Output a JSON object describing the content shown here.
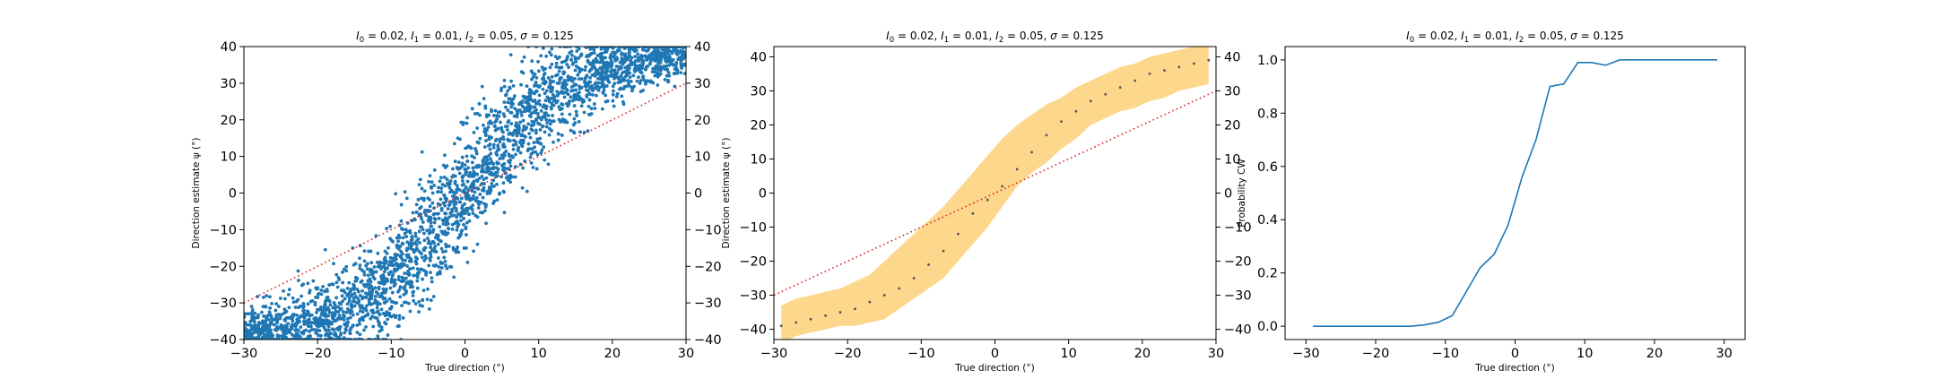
{
  "chart_data": [
    {
      "type": "scatter",
      "title": "$I_0 = 0.02$, $I_1 = 0.01$, $I_2 = 0.05$, $\\sigma = 0.125$",
      "title_parts": [
        "I",
        "0",
        " = 0.02, ",
        "I",
        "1",
        " = 0.01, ",
        "I",
        "2",
        " = 0.05, ",
        "σ",
        " = 0.125"
      ],
      "xlabel": "True direction (°)",
      "ylabel": "Direction estimate ψ (°)",
      "xlim": [
        -30,
        30
      ],
      "ylim": [
        -40,
        40
      ],
      "xticks": [
        -30,
        -20,
        -10,
        0,
        10,
        20,
        30
      ],
      "yticks": [
        -40,
        -30,
        -20,
        -10,
        0,
        10,
        20,
        30,
        40
      ],
      "right_axis_ticks": [
        -40,
        -30,
        -20,
        -10,
        0,
        10,
        20,
        30,
        40
      ],
      "point_color": "#1f77b4",
      "reference_line": {
        "x": [
          -30,
          30
        ],
        "y": [
          -30,
          30
        ],
        "color": "#d62728",
        "style": "dotted"
      },
      "trend": {
        "x": [
          -30,
          -27.5,
          -25,
          -22.5,
          -20,
          -17.5,
          -15,
          -12.5,
          -10,
          -7.5,
          -5,
          -2.5,
          0,
          2.5,
          5,
          7.5,
          10,
          12.5,
          15,
          17.5,
          20,
          22.5,
          25,
          27.5,
          30
        ],
        "y": [
          -39,
          -38,
          -37,
          -36,
          -35,
          -33,
          -31,
          -29,
          -24,
          -19,
          -13,
          -7,
          0,
          7,
          13,
          19,
          24,
          28,
          31,
          33,
          35,
          36,
          37,
          38,
          39
        ],
        "spread": [
          3,
          3.5,
          4,
          4.5,
          5,
          5.5,
          6,
          6.5,
          7,
          7.5,
          8,
          8,
          8,
          8,
          8,
          7.5,
          7,
          6.5,
          6,
          5.5,
          5,
          4.5,
          4,
          3.5,
          3
        ]
      },
      "n_points": 3000,
      "clipped_to_ylim": true
    },
    {
      "type": "line",
      "title": "$I_0 = 0.02$, $I_1 = 0.01$, $I_2 = 0.05$, $\\sigma = 0.125$",
      "title_parts": [
        "I",
        "0",
        " = 0.02, ",
        "I",
        "1",
        " = 0.01, ",
        "I",
        "2",
        " = 0.05, ",
        "σ",
        " = 0.125"
      ],
      "xlabel": "True direction (°)",
      "ylabel": "Direction estimate ψ (°)",
      "xlim": [
        -30,
        30
      ],
      "ylim": [
        -43,
        43
      ],
      "xticks": [
        -30,
        -20,
        -10,
        0,
        10,
        20,
        30
      ],
      "yticks": [
        -40,
        -30,
        -20,
        -10,
        0,
        10,
        20,
        30,
        40
      ],
      "right_axis_ticks": [
        -40,
        -30,
        -20,
        -10,
        0,
        10,
        20,
        30,
        40
      ],
      "x": [
        -29,
        -27,
        -25,
        -23,
        -21,
        -19,
        -17,
        -15,
        -13,
        -11,
        -9,
        -7,
        -5,
        -3,
        -1,
        1,
        3,
        5,
        7,
        9,
        11,
        13,
        15,
        17,
        19,
        21,
        23,
        25,
        27,
        29
      ],
      "mean": [
        -39,
        -38,
        -37,
        -36,
        -35,
        -34,
        -32,
        -30,
        -28,
        -25,
        -21,
        -17,
        -12,
        -6,
        -2,
        2,
        7,
        12,
        17,
        21,
        24,
        27,
        29,
        31,
        33,
        35,
        36,
        37,
        38,
        39
      ],
      "band_lower": [
        -44,
        -42,
        -41,
        -40,
        -39,
        -39,
        -38,
        -37,
        -34,
        -31,
        -28,
        -25,
        -20,
        -15,
        -10,
        -4,
        2,
        6,
        9,
        13,
        16,
        20,
        22,
        24,
        25,
        27,
        28,
        30,
        31,
        32
      ],
      "band_upper": [
        -33,
        -31,
        -30,
        -29,
        -28,
        -26,
        -24,
        -20,
        -16,
        -12,
        -8,
        -4,
        1,
        6,
        11,
        16,
        20,
        23,
        26,
        28,
        31,
        33,
        35,
        37,
        38,
        40,
        41,
        42,
        43,
        44
      ],
      "band_color": "#fdd37e",
      "mean_marker_color": "#555555",
      "reference_line": {
        "x": [
          -30,
          30
        ],
        "y": [
          -30,
          30
        ],
        "color": "#d62728",
        "style": "dotted"
      }
    },
    {
      "type": "line",
      "title": "$I_0 = 0.02$, $I_1 = 0.01$, $I_2 = 0.05$, $\\sigma = 0.125$",
      "title_parts": [
        "I",
        "0",
        " = 0.02, ",
        "I",
        "1",
        " = 0.01, ",
        "I",
        "2",
        " = 0.05, ",
        "σ",
        " = 0.125"
      ],
      "xlabel": "True direction (°)",
      "ylabel": "Probability CW",
      "xlim": [
        -33,
        33
      ],
      "ylim": [
        -0.05,
        1.05
      ],
      "xticks": [
        -30,
        -20,
        -10,
        0,
        10,
        20,
        30
      ],
      "yticks": [
        0.0,
        0.2,
        0.4,
        0.6,
        0.8,
        1.0
      ],
      "ytick_labels": [
        "0.0",
        "0.2",
        "0.4",
        "0.6",
        "0.8",
        "1.0"
      ],
      "line_color": "#1f77b4",
      "x": [
        -29,
        -27,
        -25,
        -23,
        -21,
        -19,
        -17,
        -15,
        -13,
        -11,
        -9,
        -7,
        -5,
        -3,
        -1,
        1,
        3,
        5,
        7,
        9,
        11,
        13,
        15,
        17,
        19,
        21,
        23,
        25,
        27,
        29
      ],
      "y": [
        0,
        0,
        0,
        0,
        0,
        0,
        0,
        0,
        0.005,
        0.015,
        0.04,
        0.13,
        0.22,
        0.27,
        0.38,
        0.56,
        0.7,
        0.9,
        0.91,
        0.99,
        0.99,
        0.98,
        1,
        1,
        1,
        1,
        1,
        1,
        1,
        1
      ]
    }
  ]
}
